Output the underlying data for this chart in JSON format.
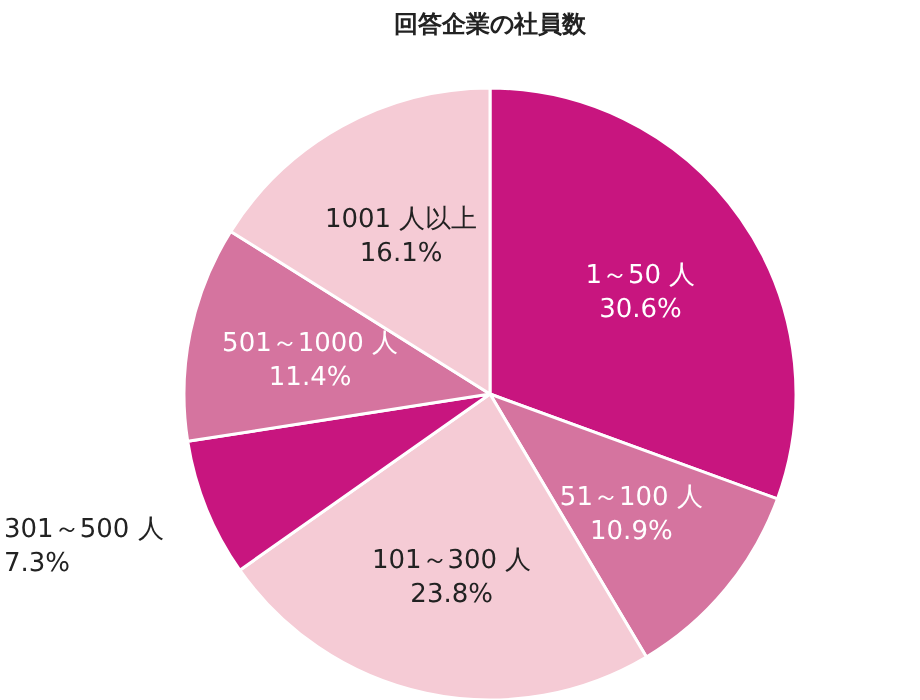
{
  "chart_data": {
    "type": "pie",
    "title": "回答企業の社員数",
    "categories": [
      "1～50 人",
      "51～100 人",
      "101～300 人",
      "301～500 人",
      "501～1000 人",
      "1001 人以上"
    ],
    "values": [
      30.6,
      10.9,
      23.8,
      7.3,
      11.4,
      16.1
    ],
    "value_labels": [
      "30.6%",
      "10.9%",
      "23.8%",
      "7.3%",
      "11.4%",
      "16.1%"
    ],
    "colors": [
      "#c8157f",
      "#d5749f",
      "#f5cbd5",
      "#c8157f",
      "#d5749f",
      "#f5cbd5"
    ]
  }
}
